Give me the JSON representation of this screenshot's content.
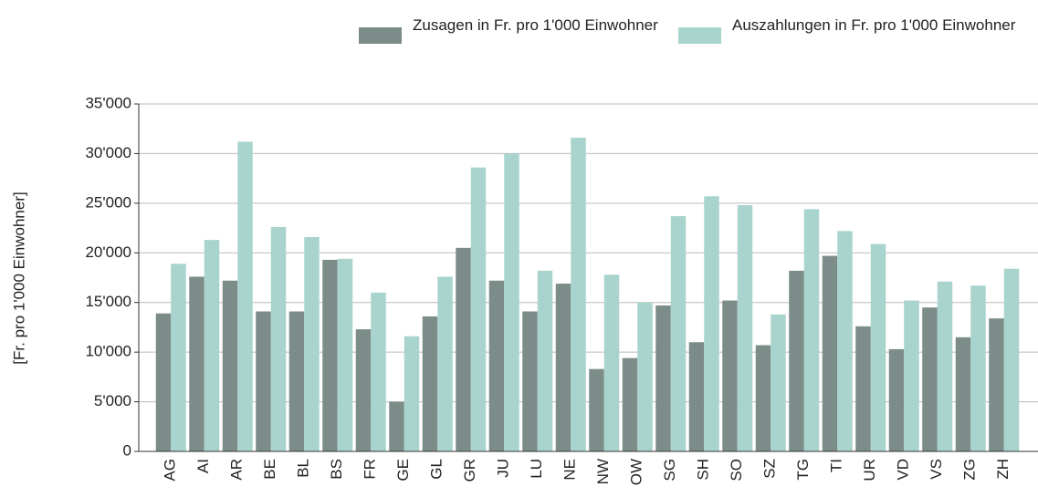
{
  "chart_data": {
    "type": "bar",
    "y_label": "[Fr. pro 1'000 Einwohner]",
    "categories": [
      "AG",
      "AI",
      "AR",
      "BE",
      "BL",
      "BS",
      "FR",
      "GE",
      "GL",
      "GR",
      "JU",
      "LU",
      "NE",
      "NW",
      "OW",
      "SG",
      "SH",
      "SO",
      "SZ",
      "TG",
      "TI",
      "UR",
      "VD",
      "VS",
      "ZG",
      "ZH"
    ],
    "series": [
      {
        "name": "Zusagen in Fr. pro 1'000 Einwohner",
        "color": "#7b8c89",
        "values": [
          13900,
          17600,
          17200,
          14100,
          14100,
          19300,
          12300,
          5000,
          13600,
          20500,
          17200,
          14100,
          16900,
          8300,
          9400,
          14700,
          11000,
          15200,
          10700,
          18200,
          19700,
          12600,
          10300,
          14500,
          11500,
          13400
        ]
      },
      {
        "name": "Auszahlungen in Fr. pro 1'000 Einwohner",
        "color": "#a9d4ce",
        "values": [
          18900,
          21300,
          31200,
          22600,
          21600,
          19400,
          16000,
          11600,
          17600,
          28600,
          30000,
          18200,
          31600,
          17800,
          15000,
          23700,
          25700,
          24800,
          13800,
          24400,
          22200,
          20900,
          15200,
          17100,
          16700,
          18400
        ]
      }
    ],
    "ylim": [
      0,
      35000
    ],
    "yticks": [
      0,
      {
        "value": 5000,
        "label": "5'000"
      },
      {
        "value": 10000,
        "label": "10'000"
      },
      {
        "value": 15000,
        "label": "15'000"
      },
      {
        "value": 20000,
        "label": "20'000"
      },
      {
        "value": 25000,
        "label": "25'000"
      },
      {
        "value": 30000,
        "label": "30'000"
      },
      {
        "value": 35000,
        "label": "35'000"
      }
    ],
    "grid": true
  }
}
